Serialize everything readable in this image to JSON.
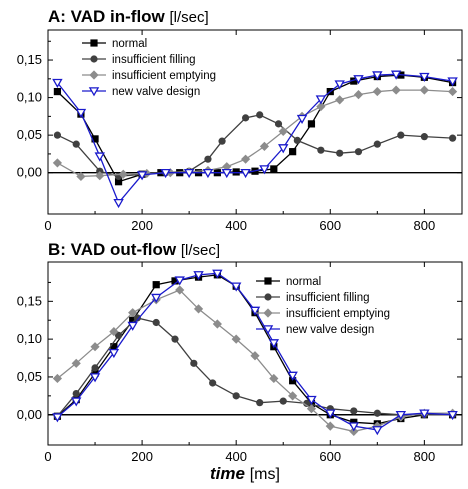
{
  "chart_data": [
    {
      "type": "line",
      "title": "A: VAD in-flow",
      "title_unit": "[l/sec]",
      "xlabel": "",
      "ylabel": "",
      "xlim": [
        0,
        880
      ],
      "ylim": [
        -0.055,
        0.19
      ],
      "x_ticks": [
        0,
        200,
        400,
        600,
        800
      ],
      "x_tick_labels": [
        "0",
        "200",
        "400",
        "600",
        "800"
      ],
      "y_ticks": [
        0.0,
        0.05,
        0.1,
        0.15
      ],
      "y_tick_labels": [
        "0,00",
        "0,05",
        "0,10",
        "0,15"
      ],
      "legend_position": "top-left",
      "series": [
        {
          "name": "normal",
          "color": "#000000",
          "marker": "square-filled",
          "points": [
            [
              20,
              0.108
            ],
            [
              70,
              0.078
            ],
            [
              100,
              0.045
            ],
            [
              150,
              -0.012
            ],
            [
              200,
              -0.002
            ],
            [
              240,
              0.0
            ],
            [
              280,
              0.0
            ],
            [
              320,
              0.0
            ],
            [
              360,
              0.0
            ],
            [
              400,
              0.001
            ],
            [
              440,
              0.002
            ],
            [
              480,
              0.005
            ],
            [
              520,
              0.028
            ],
            [
              560,
              0.065
            ],
            [
              600,
              0.108
            ],
            [
              650,
              0.122
            ],
            [
              700,
              0.128
            ],
            [
              750,
              0.13
            ],
            [
              800,
              0.127
            ],
            [
              860,
              0.12
            ]
          ]
        },
        {
          "name": "insufficient filling",
          "color": "#404040",
          "marker": "circle-filled",
          "points": [
            [
              20,
              0.05
            ],
            [
              60,
              0.038
            ],
            [
              110,
              0.002
            ],
            [
              150,
              -0.005
            ],
            [
              200,
              -0.002
            ],
            [
              250,
              0.0
            ],
            [
              300,
              0.002
            ],
            [
              340,
              0.018
            ],
            [
              370,
              0.042
            ],
            [
              420,
              0.073
            ],
            [
              450,
              0.077
            ],
            [
              490,
              0.065
            ],
            [
              530,
              0.043
            ],
            [
              580,
              0.03
            ],
            [
              620,
              0.026
            ],
            [
              660,
              0.028
            ],
            [
              700,
              0.038
            ],
            [
              750,
              0.05
            ],
            [
              800,
              0.048
            ],
            [
              860,
              0.046
            ]
          ]
        },
        {
          "name": "insufficient emptying",
          "color": "#8c8c8c",
          "marker": "diamond-filled",
          "points": [
            [
              20,
              0.013
            ],
            [
              70,
              -0.005
            ],
            [
              110,
              -0.004
            ],
            [
              160,
              -0.002
            ],
            [
              210,
              -0.001
            ],
            [
              260,
              0.0
            ],
            [
              300,
              0.001
            ],
            [
              340,
              0.003
            ],
            [
              380,
              0.008
            ],
            [
              420,
              0.018
            ],
            [
              460,
              0.035
            ],
            [
              500,
              0.055
            ],
            [
              540,
              0.075
            ],
            [
              580,
              0.088
            ],
            [
              620,
              0.097
            ],
            [
              660,
              0.104
            ],
            [
              700,
              0.108
            ],
            [
              740,
              0.11
            ],
            [
              800,
              0.11
            ],
            [
              860,
              0.108
            ]
          ]
        },
        {
          "name": "new valve design",
          "color": "#1a1acc",
          "marker": "triangle-down-open",
          "points": [
            [
              20,
              0.12
            ],
            [
              70,
              0.08
            ],
            [
              110,
              0.022
            ],
            [
              150,
              -0.04
            ],
            [
              200,
              -0.003
            ],
            [
              250,
              0.0
            ],
            [
              300,
              0.0
            ],
            [
              340,
              0.0
            ],
            [
              380,
              0.0
            ],
            [
              420,
              0.0
            ],
            [
              460,
              0.005
            ],
            [
              500,
              0.033
            ],
            [
              540,
              0.072
            ],
            [
              580,
              0.098
            ],
            [
              620,
              0.118
            ],
            [
              660,
              0.125
            ],
            [
              700,
              0.13
            ],
            [
              740,
              0.131
            ],
            [
              800,
              0.128
            ],
            [
              860,
              0.122
            ]
          ]
        }
      ]
    },
    {
      "type": "line",
      "title": "B: VAD out-flow",
      "title_unit": "[l/sec]",
      "xlabel": "time",
      "xlabel_unit": "[ms]",
      "ylabel": "",
      "xlim": [
        0,
        880
      ],
      "ylim": [
        -0.04,
        0.202
      ],
      "x_ticks": [
        0,
        200,
        400,
        600,
        800
      ],
      "x_tick_labels": [
        "0",
        "200",
        "400",
        "600",
        "800"
      ],
      "y_ticks": [
        0.0,
        0.05,
        0.1,
        0.15
      ],
      "y_tick_labels": [
        "0,00",
        "0,05",
        "0,10",
        "0,15"
      ],
      "legend_position": "top-right",
      "series": [
        {
          "name": "normal",
          "color": "#000000",
          "marker": "square-filled",
          "points": [
            [
              20,
              -0.002
            ],
            [
              60,
              0.02
            ],
            [
              100,
              0.055
            ],
            [
              140,
              0.09
            ],
            [
              180,
              0.125
            ],
            [
              230,
              0.172
            ],
            [
              270,
              0.177
            ],
            [
              320,
              0.182
            ],
            [
              360,
              0.185
            ],
            [
              400,
              0.17
            ],
            [
              440,
              0.135
            ],
            [
              480,
              0.09
            ],
            [
              520,
              0.045
            ],
            [
              560,
              0.015
            ],
            [
              600,
              0.0
            ],
            [
              650,
              -0.01
            ],
            [
              700,
              -0.012
            ],
            [
              750,
              -0.005
            ],
            [
              800,
              0.0
            ],
            [
              860,
              0.0
            ]
          ]
        },
        {
          "name": "insufficient filling",
          "color": "#404040",
          "marker": "circle-filled",
          "points": [
            [
              20,
              -0.002
            ],
            [
              60,
              0.028
            ],
            [
              100,
              0.062
            ],
            [
              150,
              0.105
            ],
            [
              190,
              0.128
            ],
            [
              230,
              0.122
            ],
            [
              270,
              0.1
            ],
            [
              310,
              0.068
            ],
            [
              350,
              0.042
            ],
            [
              400,
              0.025
            ],
            [
              450,
              0.016
            ],
            [
              500,
              0.018
            ],
            [
              550,
              0.015
            ],
            [
              600,
              0.008
            ],
            [
              650,
              0.005
            ],
            [
              700,
              0.002
            ],
            [
              750,
              0.0
            ],
            [
              800,
              0.0
            ],
            [
              860,
              0.0
            ]
          ]
        },
        {
          "name": "insufficient emptying",
          "color": "#8c8c8c",
          "marker": "diamond-filled",
          "points": [
            [
              20,
              0.048
            ],
            [
              60,
              0.068
            ],
            [
              100,
              0.09
            ],
            [
              140,
              0.11
            ],
            [
              180,
              0.135
            ],
            [
              230,
              0.152
            ],
            [
              280,
              0.165
            ],
            [
              320,
              0.14
            ],
            [
              360,
              0.12
            ],
            [
              400,
              0.1
            ],
            [
              440,
              0.078
            ],
            [
              480,
              0.048
            ],
            [
              520,
              0.025
            ],
            [
              560,
              0.008
            ],
            [
              600,
              -0.015
            ],
            [
              650,
              -0.022
            ],
            [
              700,
              -0.015
            ],
            [
              750,
              -0.003
            ],
            [
              800,
              0.002
            ],
            [
              860,
              0.002
            ]
          ]
        },
        {
          "name": "new valve design",
          "color": "#1a1acc",
          "marker": "triangle-down-open",
          "points": [
            [
              20,
              -0.003
            ],
            [
              60,
              0.018
            ],
            [
              100,
              0.05
            ],
            [
              140,
              0.082
            ],
            [
              180,
              0.118
            ],
            [
              230,
              0.155
            ],
            [
              280,
              0.178
            ],
            [
              320,
              0.185
            ],
            [
              360,
              0.187
            ],
            [
              400,
              0.17
            ],
            [
              440,
              0.138
            ],
            [
              480,
              0.095
            ],
            [
              520,
              0.052
            ],
            [
              560,
              0.02
            ],
            [
              600,
              0.002
            ],
            [
              650,
              -0.015
            ],
            [
              700,
              -0.02
            ],
            [
              750,
              0.0
            ],
            [
              800,
              0.002
            ],
            [
              860,
              0.0
            ]
          ]
        }
      ]
    }
  ]
}
